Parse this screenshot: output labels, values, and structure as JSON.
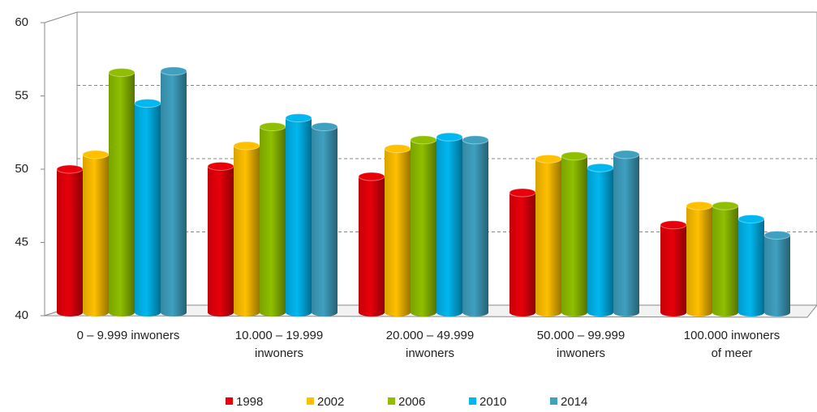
{
  "chart_data": {
    "type": "bar",
    "categories": [
      "0 – 9.999 inwoners",
      "10.000 – 19.999 inwoners",
      "20.000 – 49.999 inwoners",
      "50.000 – 99.999 inwoners",
      "100.000 inwoners of meer"
    ],
    "series": [
      {
        "name": "1998",
        "color": "#e8000a",
        "values": [
          50.0,
          50.2,
          49.5,
          48.4,
          46.2
        ]
      },
      {
        "name": "2002",
        "color": "#ffc000",
        "values": [
          51.0,
          51.6,
          51.4,
          50.7,
          47.5
        ]
      },
      {
        "name": "2006",
        "color": "#8fbf00",
        "values": [
          56.6,
          52.9,
          52.0,
          50.9,
          47.5
        ]
      },
      {
        "name": "2010",
        "color": "#00b7ef",
        "values": [
          54.5,
          53.5,
          52.2,
          50.1,
          46.6
        ]
      },
      {
        "name": "2014",
        "color": "#3fa0c0",
        "values": [
          56.7,
          52.9,
          52.0,
          51.0,
          45.5
        ]
      }
    ],
    "ylim": [
      40,
      60
    ],
    "yticks": [
      40,
      45,
      50,
      55,
      60
    ],
    "grid": true
  }
}
